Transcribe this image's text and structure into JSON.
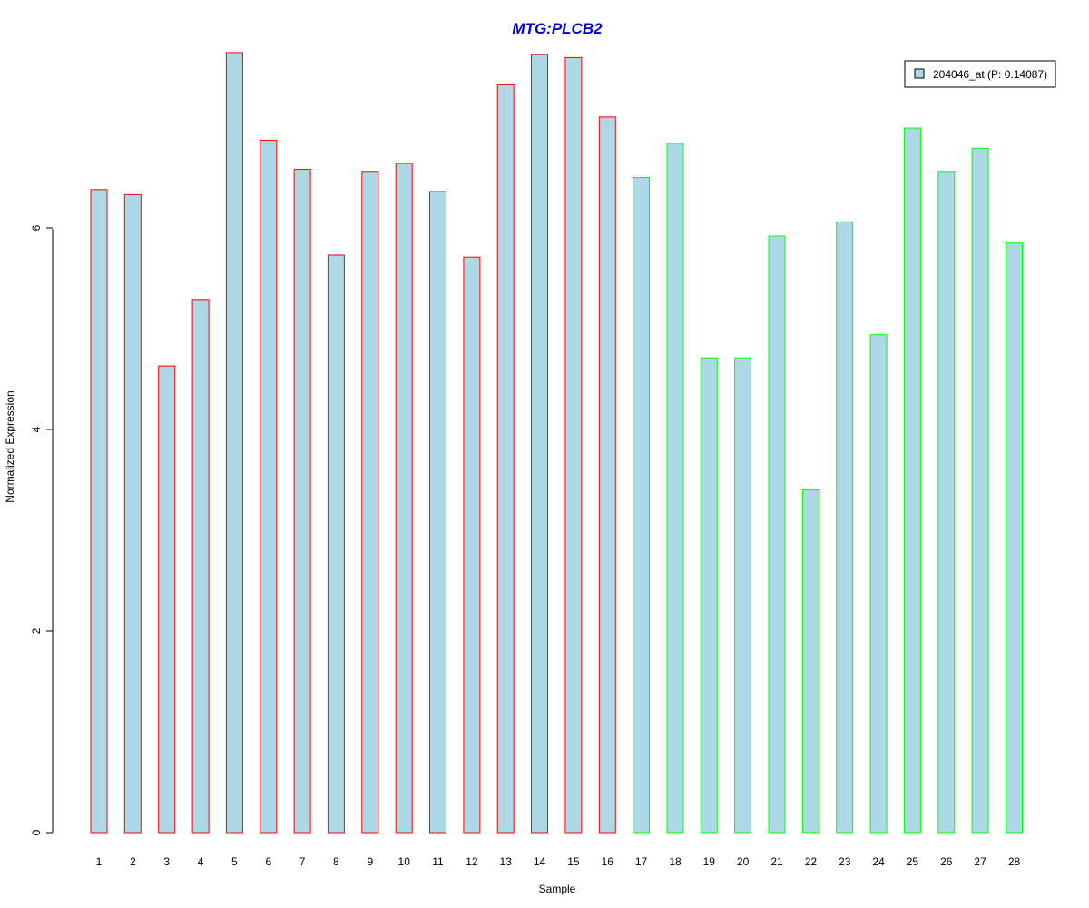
{
  "chart_data": {
    "type": "bar",
    "title": "MTG:PLCB2",
    "xlabel": "Sample",
    "ylabel": "Normalized Expression",
    "ylim": [
      0,
      7.75
    ],
    "y_ticks": [
      "0",
      "2",
      "4",
      "6"
    ],
    "grid": false,
    "legend_position": "top-right",
    "categories": [
      "1",
      "2",
      "3",
      "4",
      "5",
      "6",
      "7",
      "8",
      "9",
      "10",
      "11",
      "12",
      "13",
      "14",
      "15",
      "16",
      "17",
      "18",
      "19",
      "20",
      "21",
      "22",
      "23",
      "24",
      "25",
      "26",
      "27",
      "28"
    ],
    "series": [
      {
        "name": "204046_at (P: 0.14087)",
        "values": [
          6.38,
          6.33,
          4.63,
          5.29,
          7.74,
          6.87,
          6.58,
          5.73,
          6.56,
          6.64,
          6.36,
          5.71,
          7.42,
          7.72,
          7.69,
          7.1,
          6.5,
          6.84,
          4.71,
          4.71,
          5.92,
          3.4,
          6.06,
          4.94,
          6.99,
          6.56,
          6.79,
          5.85
        ],
        "fill_color": "#add8e6",
        "border_colors": [
          "#ff0000",
          "#ff0000",
          "#ff0000",
          "#ff0000",
          "#ff0000",
          "#ff0000",
          "#ff0000",
          "#ff0000",
          "#ff0000",
          "#ff0000",
          "#ff0000",
          "#ff0000",
          "#ff0000",
          "#ff0000",
          "#ff0000",
          "#ff0000",
          "#00ff00",
          "#00ff00",
          "#00ff00",
          "#00ff00",
          "#00ff00",
          "#00ff00",
          "#00ff00",
          "#00ff00",
          "#00ff00",
          "#00ff00",
          "#00ff00",
          "#00ff00"
        ]
      }
    ],
    "colors": {
      "title": "#0000cc",
      "legend_swatch": "#add8e6",
      "axis": "#000000"
    }
  }
}
